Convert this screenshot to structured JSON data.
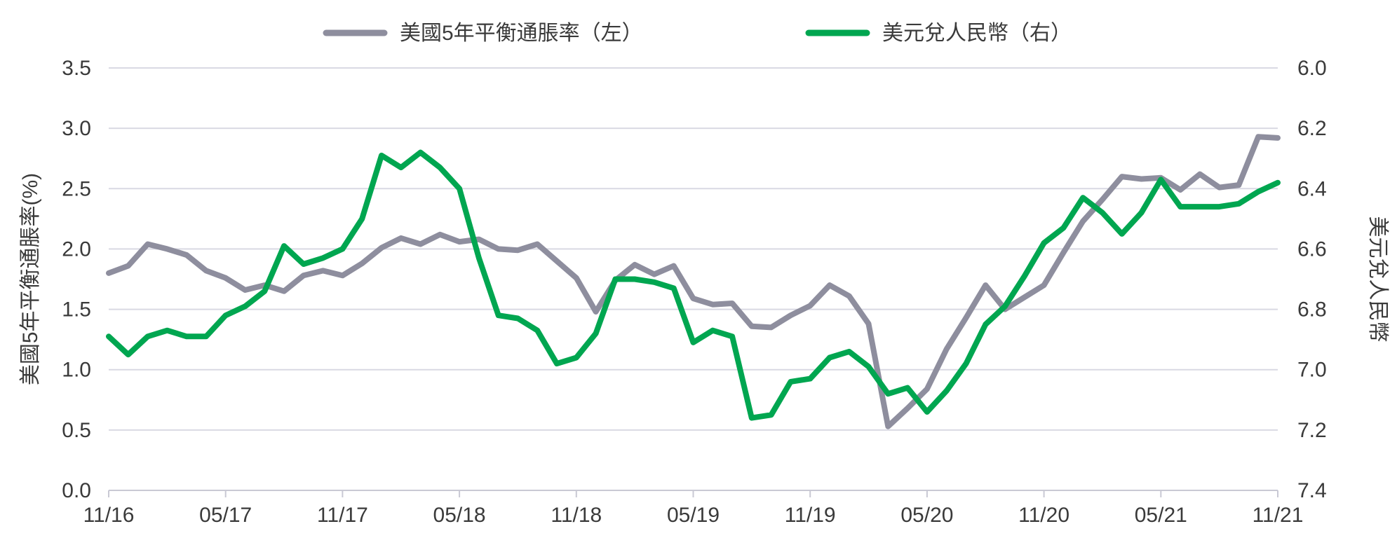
{
  "chart_data": {
    "type": "line",
    "legend_position": "top-center",
    "grid": true,
    "x_ticks": [
      "11/16",
      "05/17",
      "11/17",
      "05/18",
      "11/18",
      "05/19",
      "11/19",
      "05/20",
      "11/20",
      "05/21",
      "11/21"
    ],
    "x_range": [
      "2016-11",
      "2021-11"
    ],
    "y_left": {
      "label": "美國5年平衡通脹率(%)",
      "range": [
        0,
        3.5
      ],
      "ticks": [
        "0.0",
        "0.5",
        "1.0",
        "1.5",
        "2.0",
        "2.5",
        "3.0",
        "3.5"
      ]
    },
    "y_right": {
      "label": "美元兌人民幣",
      "range": [
        6.0,
        7.4
      ],
      "inverted": true,
      "ticks": [
        "6.0",
        "6.2",
        "6.4",
        "6.6",
        "6.8",
        "7.0",
        "7.2",
        "7.4"
      ]
    },
    "series": [
      {
        "name": "美國5年平衡通脹率（左）",
        "axis": "left",
        "color": "#8e8e9e",
        "points": [
          [
            "2016-11",
            1.8
          ],
          [
            "2016-12",
            1.86
          ],
          [
            "2017-01",
            2.04
          ],
          [
            "2017-02",
            2.0
          ],
          [
            "2017-03",
            1.95
          ],
          [
            "2017-04",
            1.82
          ],
          [
            "2017-05",
            1.76
          ],
          [
            "2017-06",
            1.66
          ],
          [
            "2017-07",
            1.7
          ],
          [
            "2017-08",
            1.65
          ],
          [
            "2017-09",
            1.78
          ],
          [
            "2017-10",
            1.82
          ],
          [
            "2017-11",
            1.78
          ],
          [
            "2017-12",
            1.88
          ],
          [
            "2018-01",
            2.01
          ],
          [
            "2018-02",
            2.09
          ],
          [
            "2018-03",
            2.04
          ],
          [
            "2018-04",
            2.12
          ],
          [
            "2018-05",
            2.06
          ],
          [
            "2018-06",
            2.08
          ],
          [
            "2018-07",
            2.0
          ],
          [
            "2018-08",
            1.99
          ],
          [
            "2018-09",
            2.04
          ],
          [
            "2018-10",
            1.9
          ],
          [
            "2018-11",
            1.76
          ],
          [
            "2018-12",
            1.48
          ],
          [
            "2019-01",
            1.74
          ],
          [
            "2019-02",
            1.87
          ],
          [
            "2019-03",
            1.79
          ],
          [
            "2019-04",
            1.86
          ],
          [
            "2019-05",
            1.59
          ],
          [
            "2019-06",
            1.54
          ],
          [
            "2019-07",
            1.55
          ],
          [
            "2019-08",
            1.36
          ],
          [
            "2019-09",
            1.35
          ],
          [
            "2019-10",
            1.45
          ],
          [
            "2019-11",
            1.53
          ],
          [
            "2019-12",
            1.7
          ],
          [
            "2020-01",
            1.61
          ],
          [
            "2020-02",
            1.38
          ],
          [
            "2020-03",
            0.53
          ],
          [
            "2020-04",
            0.68
          ],
          [
            "2020-05",
            0.84
          ],
          [
            "2020-06",
            1.17
          ],
          [
            "2020-07",
            1.43
          ],
          [
            "2020-08",
            1.7
          ],
          [
            "2020-09",
            1.5
          ],
          [
            "2020-10",
            1.6
          ],
          [
            "2020-11",
            1.7
          ],
          [
            "2020-12",
            1.97
          ],
          [
            "2021-01",
            2.23
          ],
          [
            "2021-02",
            2.41
          ],
          [
            "2021-03",
            2.6
          ],
          [
            "2021-04",
            2.58
          ],
          [
            "2021-05",
            2.59
          ],
          [
            "2021-06",
            2.49
          ],
          [
            "2021-07",
            2.62
          ],
          [
            "2021-08",
            2.51
          ],
          [
            "2021-09",
            2.53
          ],
          [
            "2021-10",
            2.93
          ],
          [
            "2021-11",
            2.92
          ]
        ]
      },
      {
        "name": "美元兌人民幣（右）",
        "axis": "right",
        "color": "#00a650",
        "points": [
          [
            "2016-11",
            6.89
          ],
          [
            "2016-12",
            6.95
          ],
          [
            "2017-01",
            6.89
          ],
          [
            "2017-02",
            6.87
          ],
          [
            "2017-03",
            6.89
          ],
          [
            "2017-04",
            6.89
          ],
          [
            "2017-05",
            6.82
          ],
          [
            "2017-06",
            6.79
          ],
          [
            "2017-07",
            6.74
          ],
          [
            "2017-08",
            6.59
          ],
          [
            "2017-09",
            6.65
          ],
          [
            "2017-10",
            6.63
          ],
          [
            "2017-11",
            6.6
          ],
          [
            "2017-12",
            6.5
          ],
          [
            "2018-01",
            6.29
          ],
          [
            "2018-02",
            6.33
          ],
          [
            "2018-03",
            6.28
          ],
          [
            "2018-04",
            6.33
          ],
          [
            "2018-05",
            6.4
          ],
          [
            "2018-06",
            6.63
          ],
          [
            "2018-07",
            6.82
          ],
          [
            "2018-08",
            6.83
          ],
          [
            "2018-09",
            6.87
          ],
          [
            "2018-10",
            6.98
          ],
          [
            "2018-11",
            6.96
          ],
          [
            "2018-12",
            6.88
          ],
          [
            "2019-01",
            6.7
          ],
          [
            "2019-02",
            6.7
          ],
          [
            "2019-03",
            6.71
          ],
          [
            "2019-04",
            6.73
          ],
          [
            "2019-05",
            6.91
          ],
          [
            "2019-06",
            6.87
          ],
          [
            "2019-07",
            6.89
          ],
          [
            "2019-08",
            7.16
          ],
          [
            "2019-09",
            7.15
          ],
          [
            "2019-10",
            7.04
          ],
          [
            "2019-11",
            7.03
          ],
          [
            "2019-12",
            6.96
          ],
          [
            "2020-01",
            6.94
          ],
          [
            "2020-02",
            6.99
          ],
          [
            "2020-03",
            7.08
          ],
          [
            "2020-04",
            7.06
          ],
          [
            "2020-05",
            7.14
          ],
          [
            "2020-06",
            7.07
          ],
          [
            "2020-07",
            6.98
          ],
          [
            "2020-08",
            6.85
          ],
          [
            "2020-09",
            6.79
          ],
          [
            "2020-10",
            6.69
          ],
          [
            "2020-11",
            6.58
          ],
          [
            "2020-12",
            6.53
          ],
          [
            "2021-01",
            6.43
          ],
          [
            "2021-02",
            6.48
          ],
          [
            "2021-03",
            6.55
          ],
          [
            "2021-04",
            6.48
          ],
          [
            "2021-05",
            6.37
          ],
          [
            "2021-06",
            6.46
          ],
          [
            "2021-07",
            6.46
          ],
          [
            "2021-08",
            6.46
          ],
          [
            "2021-09",
            6.45
          ],
          [
            "2021-10",
            6.41
          ],
          [
            "2021-11",
            6.38
          ]
        ]
      }
    ]
  }
}
